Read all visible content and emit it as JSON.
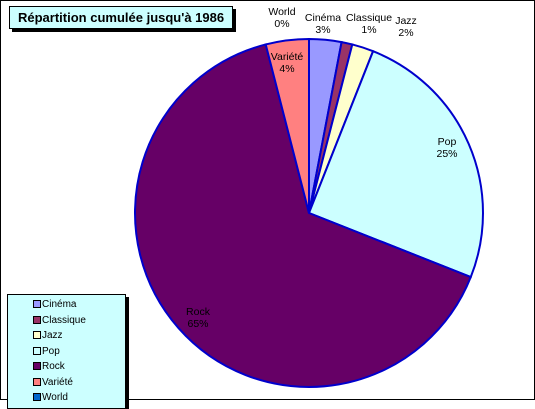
{
  "chart_data": {
    "type": "pie",
    "title": "Répartition cumulée jusqu'à 1986",
    "legend_position": "bottom-left",
    "slices": [
      {
        "name": "Cinéma",
        "value": 3,
        "label_name": "Cinéma",
        "label_value": "3%",
        "color": "#9999ff"
      },
      {
        "name": "Classique",
        "value": 1,
        "label_name": "Classique",
        "label_value": "1%",
        "color": "#993366"
      },
      {
        "name": "Jazz",
        "value": 2,
        "label_name": "Jazz",
        "label_value": "2%",
        "color": "#ffffcc"
      },
      {
        "name": "Pop",
        "value": 25,
        "label_name": "Pop",
        "label_value": "25%",
        "color": "#ccffff"
      },
      {
        "name": "Rock",
        "value": 65,
        "label_name": "Rock",
        "label_value": "65%",
        "color": "#660066"
      },
      {
        "name": "Variété",
        "value": 4,
        "label_name": "Variété",
        "label_value": "4%",
        "color": "#ff8080"
      },
      {
        "name": "World",
        "value": 0,
        "label_name": "World",
        "label_value": "0%",
        "color": "#0066cc"
      }
    ],
    "border_color": "#0000cc"
  }
}
